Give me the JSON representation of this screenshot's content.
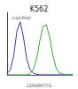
{
  "chart_data": {
    "type": "line",
    "title": "K562",
    "x": [
      0,
      5,
      10,
      15,
      20,
      25,
      30,
      35,
      40,
      45,
      50,
      55,
      60,
      65,
      70,
      75,
      80,
      85,
      90,
      95,
      100
    ],
    "series": [
      {
        "color": "#3a3ab8",
        "values": [
          2,
          8,
          30,
          70,
          85,
          60,
          25,
          8,
          3,
          1,
          0,
          0,
          0,
          0,
          0,
          0,
          0,
          0,
          0,
          0,
          0
        ]
      },
      {
        "color": "#3aa63a",
        "values": [
          0,
          0,
          0,
          0,
          0,
          0,
          0,
          2,
          8,
          25,
          55,
          78,
          80,
          60,
          30,
          10,
          3,
          1,
          0,
          0,
          0
        ]
      }
    ],
    "annotations": [
      {
        "text": "control",
        "x": 22,
        "y": 92
      }
    ],
    "footer": "128486701",
    "xlim": [
      0,
      100
    ],
    "ylim": [
      0,
      100
    ],
    "tick_labels": false,
    "grid": false
  }
}
